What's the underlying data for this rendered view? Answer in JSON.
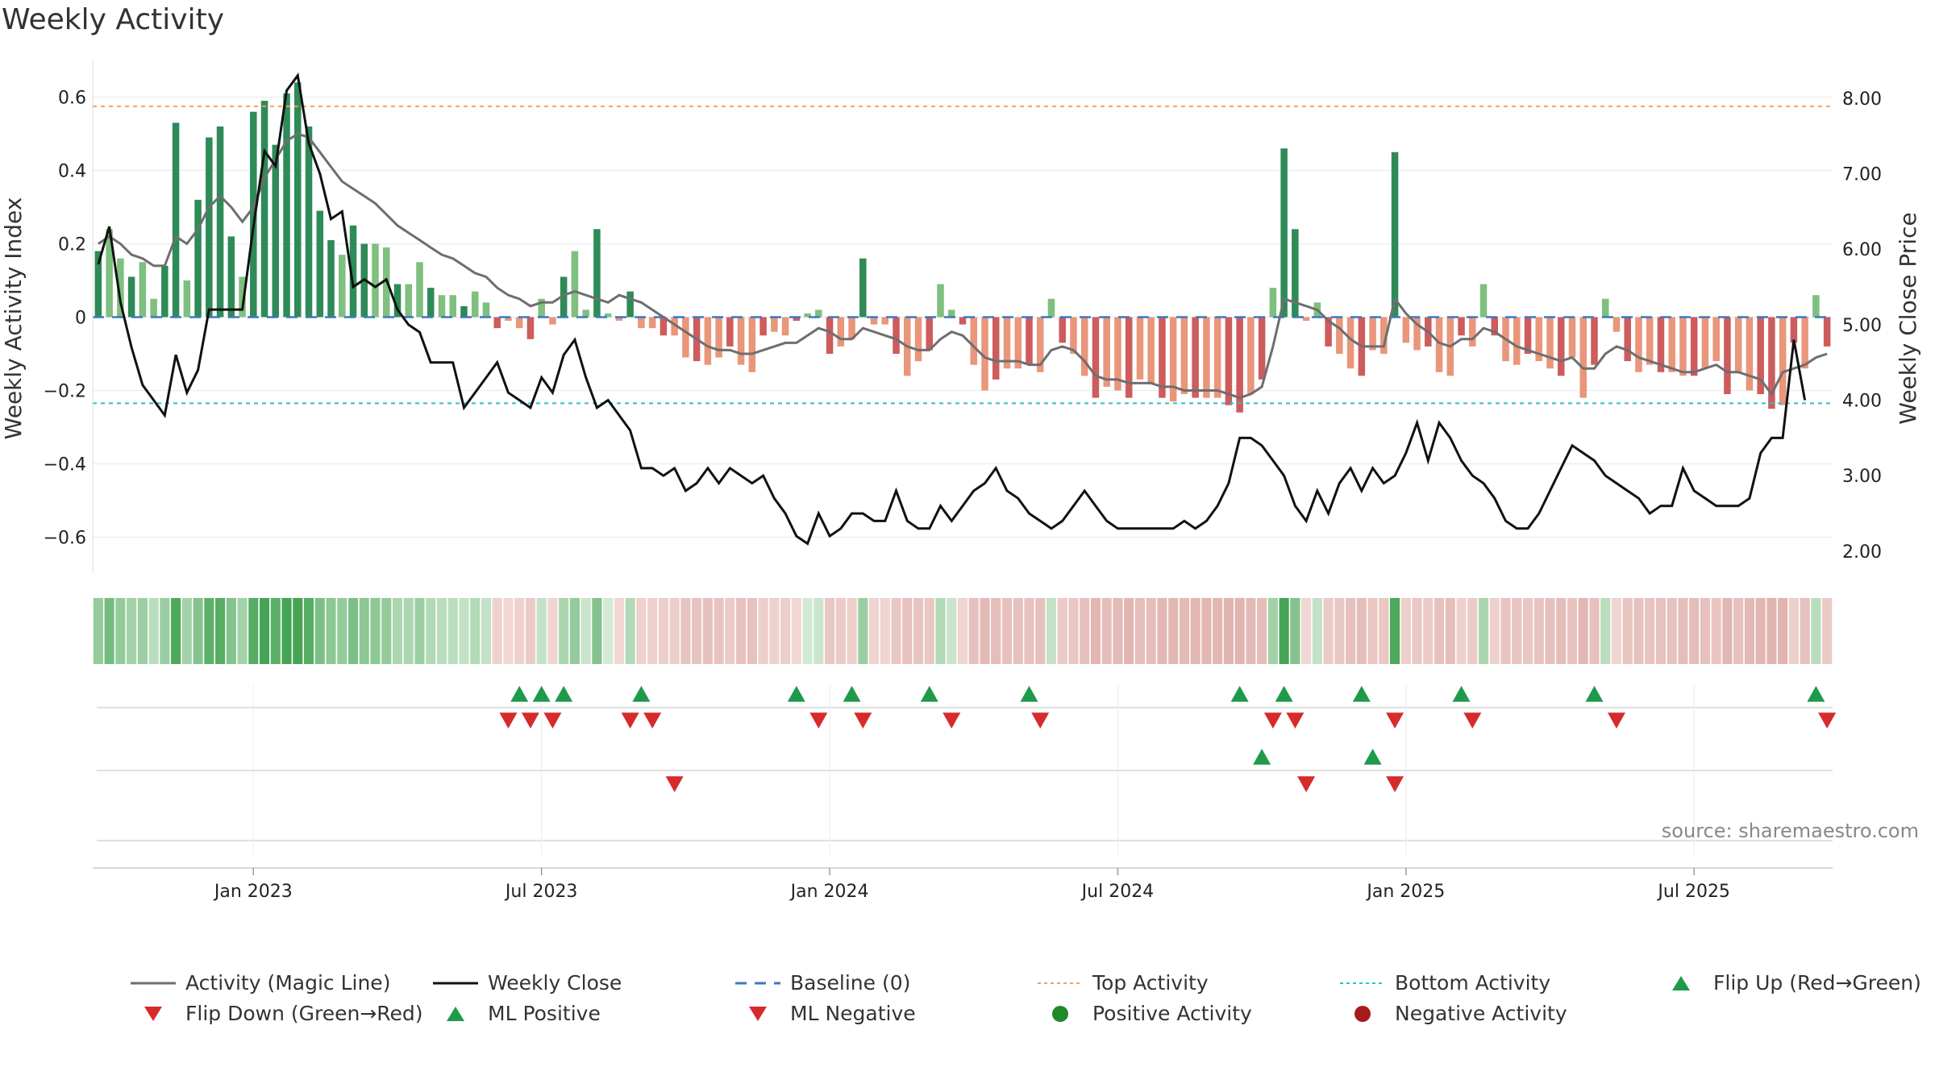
{
  "chart_data": {
    "type": "bar+line",
    "title": "Weekly Activity",
    "ylabel_left": "Weekly Activity Index",
    "ylabel_right": "Weekly Close Price",
    "ylim_left": [
      -0.7,
      0.7
    ],
    "ylim_right": [
      1.7,
      8.5
    ],
    "left_ticks": [
      0.6,
      0.4,
      0.2,
      0,
      -0.2,
      -0.4,
      -0.6
    ],
    "left_tick_labels": [
      "0.6",
      "0.4",
      "0.2",
      "0",
      "−0.2",
      "−0.4",
      "−0.6"
    ],
    "right_ticks": [
      8.0,
      7.0,
      6.0,
      5.0,
      4.0,
      3.0,
      2.0
    ],
    "right_tick_labels": [
      "8.00",
      "7.00",
      "6.00",
      "5.00",
      "4.00",
      "3.00",
      "2.00"
    ],
    "x_tick_labels": [
      "Jan 2023",
      "Jul 2023",
      "Jan 2024",
      "Jul 2024",
      "Jan 2025",
      "Jul 2025"
    ],
    "x_tick_weeks": [
      14.5,
      40.5,
      66.5,
      92.5,
      118.5,
      144.5
    ],
    "top_activity": 0.575,
    "bottom_activity": -0.235,
    "baseline": 0,
    "activity": [
      0.18,
      0.24,
      0.16,
      0.11,
      0.15,
      0.05,
      0.14,
      0.53,
      0.1,
      0.32,
      0.49,
      0.52,
      0.22,
      0.11,
      0.56,
      0.59,
      0.47,
      0.61,
      0.64,
      0.52,
      0.29,
      0.21,
      0.17,
      0.25,
      0.2,
      0.2,
      0.19,
      0.09,
      0.09,
      0.15,
      0.08,
      0.06,
      0.06,
      0.03,
      0.07,
      0.04,
      -0.03,
      -0.01,
      -0.03,
      -0.06,
      0.05,
      -0.02,
      0.11,
      0.18,
      0.02,
      0.24,
      0.01,
      -0.01,
      0.07,
      -0.03,
      -0.03,
      -0.05,
      -0.05,
      -0.11,
      -0.12,
      -0.13,
      -0.11,
      -0.08,
      -0.13,
      -0.15,
      -0.05,
      -0.04,
      -0.05,
      -0.01,
      0.01,
      0.02,
      -0.1,
      -0.08,
      -0.06,
      0.16,
      -0.02,
      -0.02,
      -0.1,
      -0.16,
      -0.12,
      -0.09,
      0.09,
      0.02,
      -0.02,
      -0.13,
      -0.2,
      -0.17,
      -0.14,
      -0.14,
      -0.13,
      -0.15,
      0.05,
      -0.07,
      -0.1,
      -0.16,
      -0.22,
      -0.19,
      -0.2,
      -0.22,
      -0.17,
      -0.18,
      -0.22,
      -0.23,
      -0.21,
      -0.22,
      -0.22,
      -0.22,
      -0.24,
      -0.26,
      -0.21,
      -0.17,
      0.08,
      0.46,
      0.24,
      -0.01,
      0.04,
      -0.08,
      -0.1,
      -0.14,
      -0.16,
      -0.09,
      -0.1,
      0.45,
      -0.07,
      -0.09,
      -0.08,
      -0.15,
      -0.16,
      -0.05,
      -0.08,
      0.09,
      -0.05,
      -0.12,
      -0.13,
      -0.1,
      -0.12,
      -0.14,
      -0.16,
      -0.11,
      -0.22,
      -0.13,
      0.05,
      -0.04,
      -0.12,
      -0.15,
      -0.13,
      -0.15,
      -0.15,
      -0.16,
      -0.16,
      -0.14,
      -0.12,
      -0.21,
      -0.15,
      -0.2,
      -0.21,
      -0.25,
      -0.24,
      -0.07,
      -0.14,
      0.06,
      -0.08
    ],
    "magic_line": [
      0.2,
      0.22,
      0.2,
      0.17,
      0.16,
      0.14,
      0.14,
      0.22,
      0.2,
      0.24,
      0.3,
      0.33,
      0.3,
      0.26,
      0.3,
      0.38,
      0.43,
      0.48,
      0.5,
      0.49,
      0.45,
      0.41,
      0.37,
      0.35,
      0.33,
      0.31,
      0.28,
      0.25,
      0.23,
      0.21,
      0.19,
      0.17,
      0.16,
      0.14,
      0.12,
      0.11,
      0.08,
      0.06,
      0.05,
      0.03,
      0.04,
      0.04,
      0.06,
      0.07,
      0.06,
      0.05,
      0.04,
      0.06,
      0.05,
      0.04,
      0.02,
      0.0,
      -0.02,
      -0.04,
      -0.06,
      -0.08,
      -0.09,
      -0.09,
      -0.1,
      -0.1,
      -0.09,
      -0.08,
      -0.07,
      -0.07,
      -0.05,
      -0.03,
      -0.04,
      -0.06,
      -0.06,
      -0.03,
      -0.04,
      -0.05,
      -0.06,
      -0.08,
      -0.09,
      -0.09,
      -0.06,
      -0.04,
      -0.05,
      -0.08,
      -0.11,
      -0.12,
      -0.12,
      -0.12,
      -0.13,
      -0.13,
      -0.09,
      -0.08,
      -0.09,
      -0.12,
      -0.16,
      -0.17,
      -0.17,
      -0.18,
      -0.18,
      -0.18,
      -0.19,
      -0.19,
      -0.2,
      -0.2,
      -0.2,
      -0.2,
      -0.21,
      -0.22,
      -0.21,
      -0.19,
      -0.08,
      0.05,
      0.04,
      0.03,
      0.02,
      -0.01,
      -0.03,
      -0.06,
      -0.08,
      -0.08,
      -0.08,
      0.05,
      0.01,
      -0.02,
      -0.04,
      -0.07,
      -0.08,
      -0.06,
      -0.06,
      -0.03,
      -0.04,
      -0.06,
      -0.08,
      -0.09,
      -0.1,
      -0.11,
      -0.12,
      -0.11,
      -0.14,
      -0.14,
      -0.1,
      -0.08,
      -0.09,
      -0.11,
      -0.12,
      -0.13,
      -0.14,
      -0.15,
      -0.15,
      -0.14,
      -0.13,
      -0.15,
      -0.15,
      -0.16,
      -0.17,
      -0.21,
      -0.15,
      -0.14,
      -0.13,
      -0.11,
      -0.1
    ],
    "close": [
      5.8,
      6.3,
      5.3,
      4.7,
      4.2,
      4.0,
      3.8,
      4.6,
      4.1,
      4.4,
      5.2,
      5.2,
      5.2,
      5.2,
      6.3,
      7.3,
      7.1,
      8.1,
      8.3,
      7.4,
      7.0,
      6.4,
      6.5,
      5.5,
      5.6,
      5.5,
      5.6,
      5.2,
      5.0,
      4.9,
      4.5,
      4.5,
      4.5,
      3.9,
      4.1,
      4.3,
      4.5,
      4.1,
      4.0,
      3.9,
      4.3,
      4.1,
      4.6,
      4.8,
      4.3,
      3.9,
      4.0,
      3.8,
      3.6,
      3.1,
      3.1,
      3.0,
      3.1,
      2.8,
      2.9,
      3.1,
      2.9,
      3.1,
      3.0,
      2.9,
      3.0,
      2.7,
      2.5,
      2.2,
      2.1,
      2.5,
      2.2,
      2.3,
      2.5,
      2.5,
      2.4,
      2.4,
      2.8,
      2.4,
      2.3,
      2.3,
      2.6,
      2.4,
      2.6,
      2.8,
      2.9,
      3.1,
      2.8,
      2.7,
      2.5,
      2.4,
      2.3,
      2.4,
      2.6,
      2.8,
      2.6,
      2.4,
      2.3,
      2.3,
      2.3,
      2.3,
      2.3,
      2.3,
      2.4,
      2.3,
      2.4,
      2.6,
      2.9,
      3.5,
      3.5,
      3.4,
      3.2,
      3.0,
      2.6,
      2.4,
      2.8,
      2.5,
      2.9,
      3.1,
      2.8,
      3.1,
      2.9,
      3.0,
      3.3,
      3.7,
      3.2,
      3.7,
      3.5,
      3.2,
      3.0,
      2.9,
      2.7,
      2.4,
      2.3,
      2.3,
      2.5,
      2.8,
      3.1,
      3.4,
      3.3,
      3.2,
      3.0,
      2.9,
      2.8,
      2.7,
      2.5,
      2.6,
      2.6,
      3.1,
      2.8,
      2.7,
      2.6,
      2.6,
      2.6,
      2.7,
      3.3,
      3.5,
      3.5,
      4.8,
      4.0
    ],
    "heat_strip": [
      0.5,
      0.7,
      0.5,
      0.4,
      0.45,
      0.25,
      0.45,
      0.95,
      0.4,
      0.6,
      0.85,
      0.9,
      0.6,
      0.4,
      0.9,
      1.0,
      0.85,
      1.0,
      1.0,
      0.9,
      0.65,
      0.55,
      0.5,
      0.65,
      0.55,
      0.55,
      0.5,
      0.35,
      0.35,
      0.45,
      0.3,
      0.25,
      0.25,
      0.2,
      0.3,
      0.2,
      -0.25,
      -0.15,
      -0.25,
      -0.35,
      0.2,
      -0.2,
      0.35,
      0.5,
      0.15,
      0.6,
      0.1,
      -0.15,
      0.3,
      -0.25,
      -0.25,
      -0.3,
      -0.3,
      -0.45,
      -0.45,
      -0.5,
      -0.45,
      -0.35,
      -0.5,
      -0.5,
      -0.3,
      -0.25,
      -0.3,
      -0.15,
      0.1,
      0.15,
      -0.4,
      -0.35,
      -0.3,
      0.45,
      -0.2,
      -0.2,
      -0.4,
      -0.5,
      -0.45,
      -0.4,
      0.3,
      0.15,
      -0.2,
      -0.5,
      -0.6,
      -0.55,
      -0.5,
      -0.5,
      -0.5,
      -0.5,
      0.2,
      -0.35,
      -0.4,
      -0.5,
      -0.65,
      -0.55,
      -0.6,
      -0.65,
      -0.55,
      -0.55,
      -0.65,
      -0.65,
      -0.6,
      -0.65,
      -0.65,
      -0.65,
      -0.7,
      -0.7,
      -0.6,
      -0.55,
      0.4,
      1.0,
      0.6,
      -0.15,
      0.2,
      -0.35,
      -0.4,
      -0.5,
      -0.55,
      -0.4,
      -0.4,
      0.95,
      -0.3,
      -0.4,
      -0.35,
      -0.5,
      -0.55,
      -0.25,
      -0.35,
      0.35,
      -0.25,
      -0.45,
      -0.45,
      -0.4,
      -0.45,
      -0.5,
      -0.55,
      -0.45,
      -0.65,
      -0.5,
      0.25,
      -0.2,
      -0.45,
      -0.5,
      -0.45,
      -0.5,
      -0.5,
      -0.55,
      -0.55,
      -0.5,
      -0.45,
      -0.65,
      -0.5,
      -0.6,
      -0.65,
      -0.7,
      -0.7,
      -0.3,
      -0.5,
      0.25,
      -0.35
    ],
    "flip_up_weeks": [
      38,
      40,
      42,
      49,
      63,
      68,
      75,
      84,
      103,
      107,
      114,
      123,
      135,
      155
    ],
    "flip_down_weeks": [
      37,
      39,
      41,
      48,
      50,
      65,
      69,
      77,
      85,
      106,
      108,
      117,
      124,
      137,
      156
    ],
    "ml_positive_weeks": [
      105,
      115
    ],
    "ml_negative_weeks": [
      52,
      109,
      117
    ],
    "source": "source: sharemaestro.com",
    "legend": [
      {
        "label": "Activity (Magic Line)",
        "symbol": "line",
        "color": "#6e6e72"
      },
      {
        "label": "Weekly Close",
        "symbol": "line",
        "color": "#111111"
      },
      {
        "label": "Baseline (0)",
        "symbol": "dash",
        "color": "#3a78c2"
      },
      {
        "label": "Top Activity",
        "symbol": "dot",
        "color": "#f0a060"
      },
      {
        "label": "Bottom Activity",
        "symbol": "dot",
        "color": "#22c3d0"
      },
      {
        "label": "Flip Up (Red→Green)",
        "symbol": "tri-up",
        "color": "#1e9a4a"
      },
      {
        "label": "Flip Down (Green→Red)",
        "symbol": "tri-down",
        "color": "#d62b2b"
      },
      {
        "label": "ML Positive",
        "symbol": "tri-up",
        "color": "#1e9a4a"
      },
      {
        "label": "ML Negative",
        "symbol": "tri-down",
        "color": "#d62b2b"
      },
      {
        "label": "Positive Activity",
        "symbol": "circle",
        "color": "#1f8a2a"
      },
      {
        "label": "Negative Activity",
        "symbol": "circle",
        "color": "#a61c1c"
      }
    ],
    "colors": {
      "pos_strong": "#2e8b57",
      "pos_light": "#7fbf7f",
      "neg_strong": "#cd5c5c",
      "neg_light": "#e9967a",
      "magic": "#6e6e72",
      "close": "#111111",
      "baseline": "#3a78c2",
      "top": "#f0a060",
      "bottom": "#22c3d0",
      "tri_up": "#1e9a4a",
      "tri_down": "#d62b2b"
    }
  }
}
